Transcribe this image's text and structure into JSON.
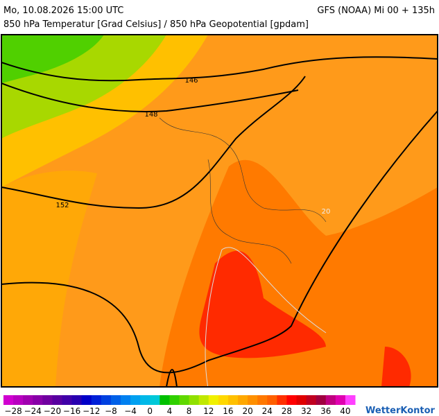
{
  "header": {
    "datetime": "Mo, 10.08.2026 15:00 UTC",
    "model": "GFS (NOAA) Mi 00 + 135h",
    "subtitle": "850 hPa Temperatur [Grad Celsius] / 850 hPa Geopotential [gpdam]"
  },
  "map": {
    "contour_labels": [
      "146",
      "148",
      "152",
      "20"
    ]
  },
  "colorbar": {
    "range": [
      -30,
      42
    ],
    "colors": [
      "#d000d0",
      "#b800c0",
      "#a000b0",
      "#8800a8",
      "#7000a0",
      "#5800a0",
      "#4000a8",
      "#2800b0",
      "#0000c8",
      "#0020d8",
      "#0040e0",
      "#0060e8",
      "#0080f0",
      "#00a0f0",
      "#00b8e8",
      "#00c8d8",
      "#00c000",
      "#30d000",
      "#60d800",
      "#90e000",
      "#c0e800",
      "#f0f000",
      "#ffd800",
      "#ffc000",
      "#ffa800",
      "#ff9000",
      "#ff7800",
      "#ff6000",
      "#ff3000",
      "#ff0000",
      "#e00000",
      "#c00020",
      "#a00040",
      "#c00080",
      "#e000b0",
      "#ff40ff"
    ],
    "ticks": [
      {
        "value": -28,
        "label": "−28"
      },
      {
        "value": -24,
        "label": "−24"
      },
      {
        "value": -20,
        "label": "−20"
      },
      {
        "value": -16,
        "label": "−16"
      },
      {
        "value": -12,
        "label": "−12"
      },
      {
        "value": -8,
        "label": "−8"
      },
      {
        "value": -4,
        "label": "−4"
      },
      0,
      4,
      8,
      12,
      16,
      20,
      24,
      28,
      32,
      36,
      40
    ]
  },
  "logo": "WetterKontor"
}
